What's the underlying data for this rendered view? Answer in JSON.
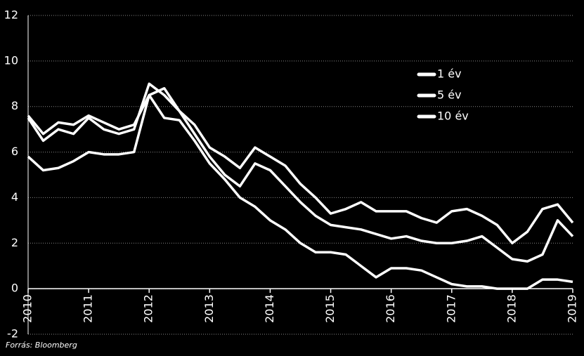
{
  "chart_data": {
    "type": "line",
    "source": "Forrás: Bloomberg",
    "x": [
      2010,
      2010.25,
      2010.5,
      2010.75,
      2011,
      2011.25,
      2011.5,
      2011.75,
      2012,
      2012.25,
      2012.5,
      2012.75,
      2013,
      2013.25,
      2013.5,
      2013.75,
      2014,
      2014.25,
      2014.5,
      2014.75,
      2015,
      2015.25,
      2015.5,
      2015.75,
      2016,
      2016.25,
      2016.5,
      2016.75,
      2017,
      2017.25,
      2017.5,
      2017.75,
      2018,
      2018.25,
      2018.5,
      2018.75,
      2019
    ],
    "series": [
      {
        "name": "1 év",
        "color": "#ffffff",
        "values": [
          5.8,
          5.2,
          5.3,
          5.6,
          6.0,
          5.9,
          5.9,
          6.0,
          8.5,
          7.5,
          7.4,
          6.5,
          5.5,
          4.8,
          4.0,
          3.6,
          3.0,
          2.6,
          2.0,
          1.6,
          1.6,
          1.5,
          1.0,
          0.5,
          0.9,
          0.9,
          0.8,
          0.5,
          0.2,
          0.1,
          0.1,
          0.0,
          0.0,
          0.0,
          0.4,
          0.4,
          0.3
        ]
      },
      {
        "name": "5 év",
        "color": "#ffffff",
        "values": [
          7.5,
          6.5,
          7.0,
          6.8,
          7.5,
          7.0,
          6.8,
          7.0,
          9.0,
          8.5,
          7.8,
          6.8,
          5.8,
          5.0,
          4.5,
          5.5,
          5.2,
          4.5,
          3.8,
          3.2,
          2.8,
          2.7,
          2.6,
          2.4,
          2.2,
          2.3,
          2.1,
          2.0,
          2.0,
          2.1,
          2.3,
          1.8,
          1.3,
          1.2,
          1.5,
          3.0,
          2.3
        ]
      },
      {
        "name": "10 év",
        "color": "#ffffff",
        "values": [
          7.6,
          6.8,
          7.3,
          7.2,
          7.6,
          7.3,
          7.0,
          7.2,
          8.5,
          8.8,
          7.8,
          7.2,
          6.2,
          5.8,
          5.3,
          6.2,
          5.8,
          5.4,
          4.6,
          4.0,
          3.3,
          3.5,
          3.8,
          3.4,
          3.4,
          3.4,
          3.1,
          2.9,
          3.4,
          3.5,
          3.2,
          2.8,
          2.0,
          2.5,
          3.5,
          3.7,
          2.9
        ]
      }
    ],
    "xlim": [
      2010,
      2019
    ],
    "xticks": [
      2010,
      2011,
      2012,
      2013,
      2014,
      2015,
      2016,
      2017,
      2018,
      2019
    ],
    "ylim": [
      -2,
      12
    ],
    "yticks": [
      -2,
      0,
      2,
      4,
      6,
      8,
      10,
      12
    ],
    "grid": true,
    "legend": "upper right"
  }
}
